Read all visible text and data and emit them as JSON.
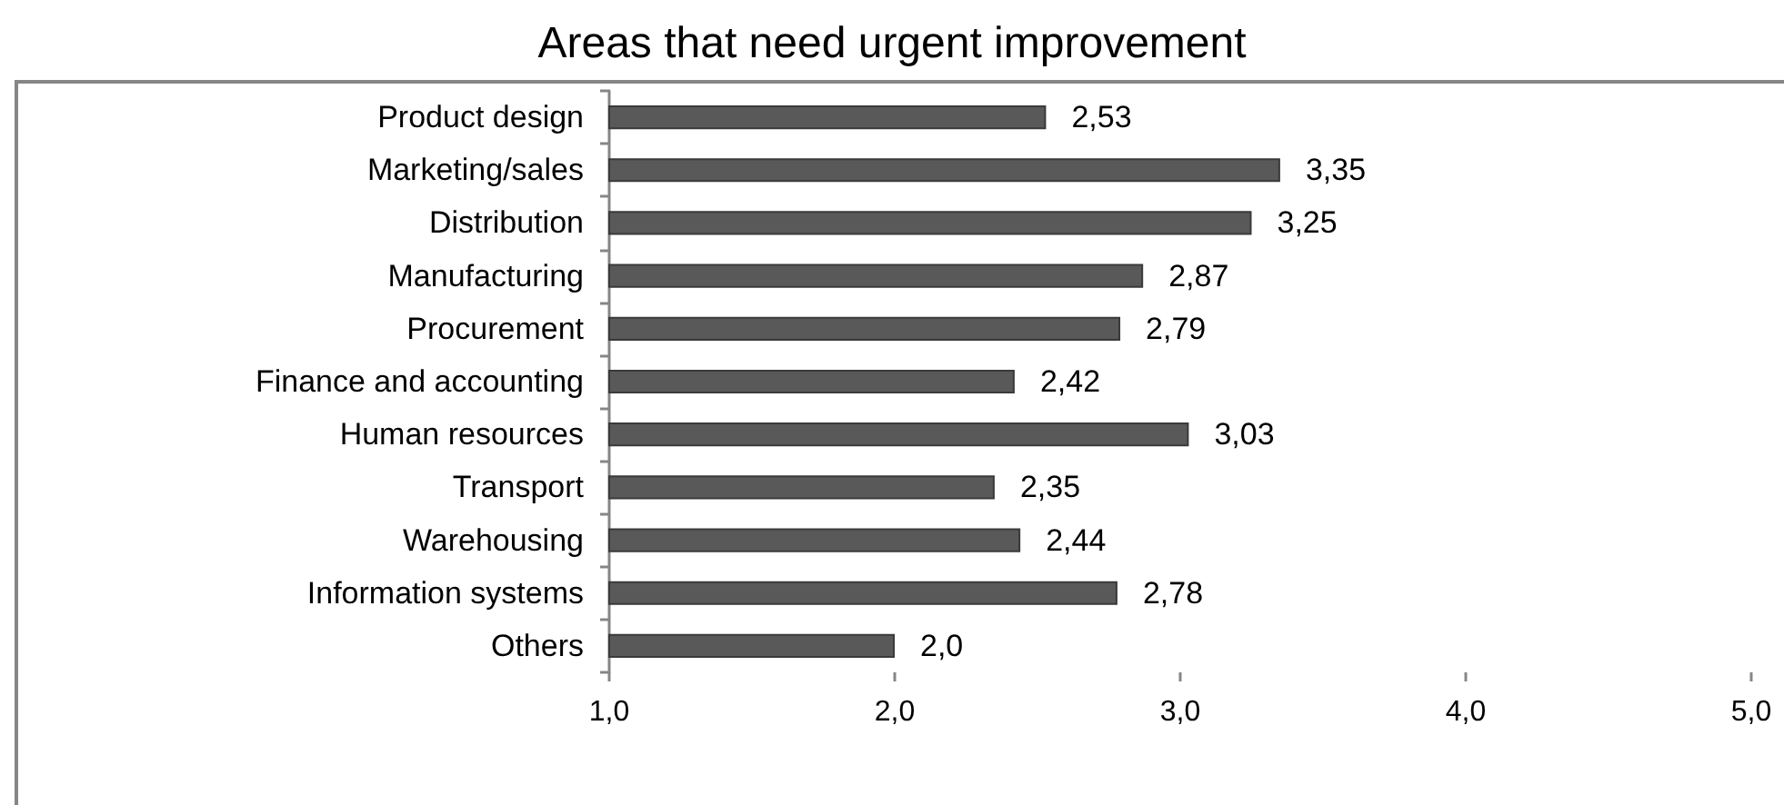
{
  "chart_data": {
    "type": "bar",
    "orientation": "horizontal",
    "title": "Areas that need urgent improvement",
    "categories": [
      "Product design",
      "Marketing/sales",
      "Distribution",
      "Manufacturing",
      "Procurement",
      "Finance and accounting",
      "Human resources",
      "Transport",
      "Warehousing",
      "Information systems",
      "Others"
    ],
    "values": [
      2.53,
      3.35,
      3.25,
      2.87,
      2.79,
      2.42,
      3.03,
      2.35,
      2.44,
      2.78,
      2.0
    ],
    "value_labels": [
      "2,53",
      "3,35",
      "3,25",
      "2,87",
      "2,79",
      "2,42",
      "3,03",
      "2,35",
      "2,44",
      "2,78",
      "2,0"
    ],
    "color": "#595959",
    "xlim": [
      1,
      5
    ],
    "xticks": [
      {
        "value": 1,
        "label": "1,0"
      },
      {
        "value": 2,
        "label": "2,0"
      },
      {
        "value": 3,
        "label": "3,0"
      },
      {
        "value": 4,
        "label": "4,0"
      },
      {
        "value": 5,
        "label": "5,0"
      }
    ]
  }
}
